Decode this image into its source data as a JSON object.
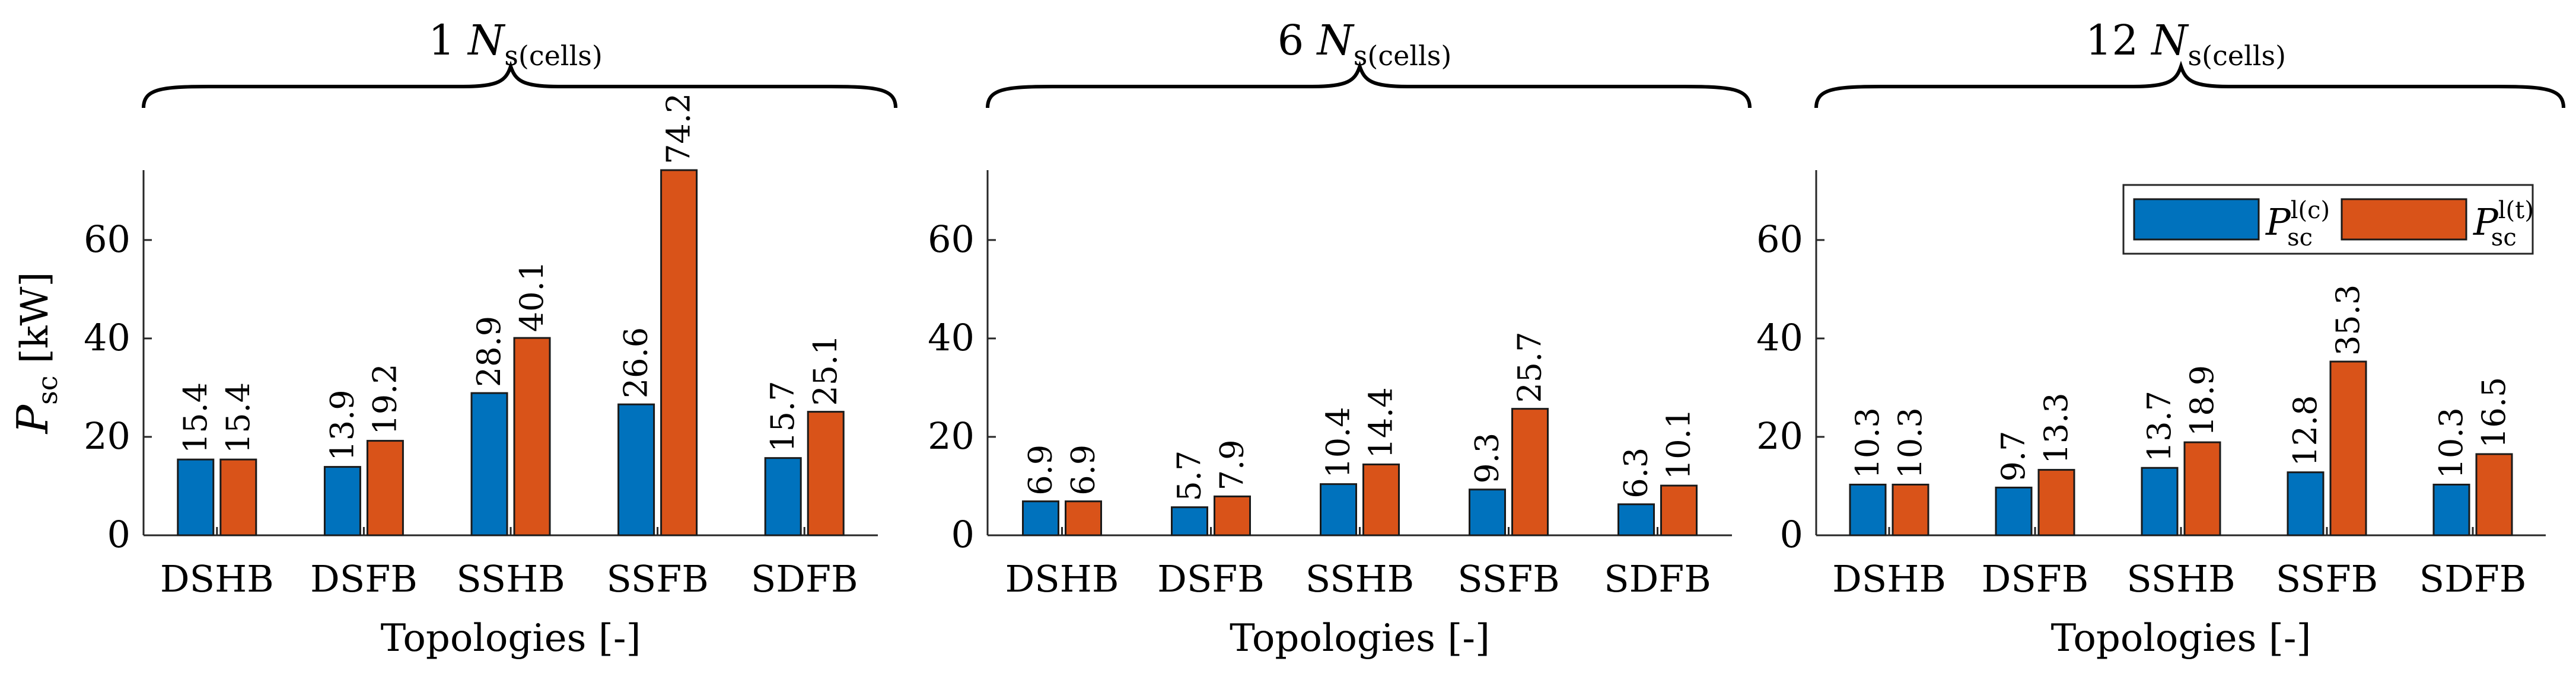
{
  "chart_data": {
    "type": "bar",
    "ylabel": "P",
    "ylabel_sub": "sc",
    "ylabel_unit": "[kW]",
    "ylim": [
      0,
      74.2
    ],
    "yticks": [
      0,
      20,
      40,
      60
    ],
    "xlabel": "Topologies [-]",
    "legend": {
      "position": "top-right",
      "items": [
        {
          "symbol": "P",
          "sub": "sc",
          "sup": "l(c)",
          "color": "#0072BD"
        },
        {
          "symbol": "P",
          "sub": "sc",
          "sup": "l(t)",
          "color": "#D95319"
        }
      ]
    },
    "panels": [
      {
        "group": {
          "prefix": "1",
          "symbol": "N",
          "sub": "s(cells)"
        },
        "categories": [
          "DSHB",
          "DSFB",
          "SSHB",
          "SSFB",
          "SDFB"
        ],
        "series": [
          {
            "name": "P_sc^l(c)",
            "values": [
              15.4,
              13.9,
              28.9,
              26.6,
              15.7
            ]
          },
          {
            "name": "P_sc^l(t)",
            "values": [
              15.4,
              19.2,
              40.1,
              74.2,
              25.1
            ]
          }
        ],
        "labels": [
          [
            "15.4",
            "13.9",
            "28.9",
            "26.6",
            "15.7"
          ],
          [
            "15.4",
            "19.2",
            "40.1",
            "74.2",
            "25.1"
          ]
        ]
      },
      {
        "group": {
          "prefix": "6",
          "symbol": "N",
          "sub": "s(cells)"
        },
        "categories": [
          "DSHB",
          "DSFB",
          "SSHB",
          "SSFB",
          "SDFB"
        ],
        "series": [
          {
            "name": "P_sc^l(c)",
            "values": [
              6.9,
              5.7,
              10.4,
              9.3,
              6.3
            ]
          },
          {
            "name": "P_sc^l(t)",
            "values": [
              6.9,
              7.9,
              14.4,
              25.7,
              10.1
            ]
          }
        ],
        "labels": [
          [
            "6.9",
            "5.7",
            "10.4",
            "9.3",
            "6.3"
          ],
          [
            "6.9",
            "7.9",
            "14.4",
            "25.7",
            "10.1"
          ]
        ]
      },
      {
        "group": {
          "prefix": "12",
          "symbol": "N",
          "sub": "s(cells)"
        },
        "categories": [
          "DSHB",
          "DSFB",
          "SSHB",
          "SSFB",
          "SDFB"
        ],
        "series": [
          {
            "name": "P_sc^l(c)",
            "values": [
              10.3,
              9.7,
              13.7,
              12.8,
              10.3
            ]
          },
          {
            "name": "P_sc^l(t)",
            "values": [
              10.3,
              13.3,
              18.9,
              35.3,
              16.5
            ]
          }
        ],
        "labels": [
          [
            "10.3",
            "9.7",
            "13.7",
            "12.8",
            "10.3"
          ],
          [
            "10.3",
            "13.3",
            "18.9",
            "35.3",
            "16.5"
          ]
        ]
      }
    ]
  }
}
